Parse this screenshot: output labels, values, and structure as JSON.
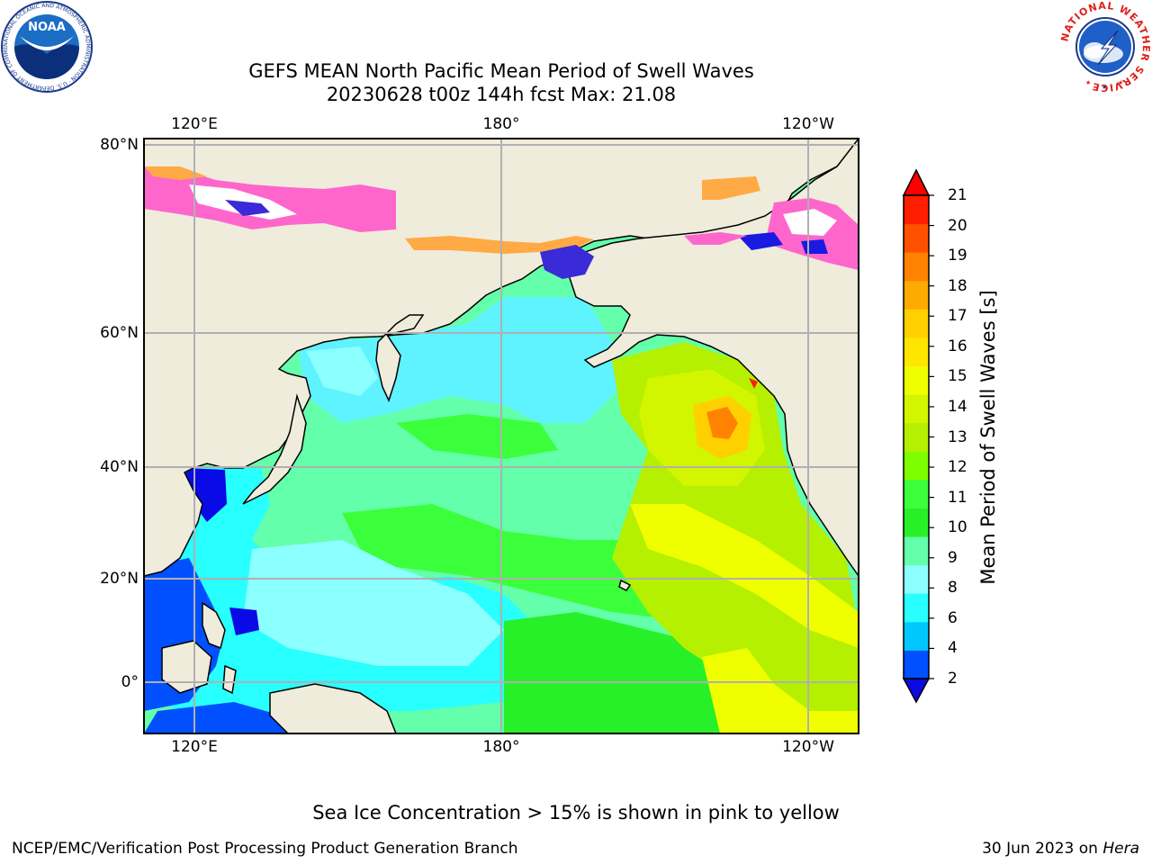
{
  "title_line1": "GEFS MEAN North Pacific Mean Period of Swell Waves",
  "title_line2": "20230628 t00z 144h fcst   Max: 21.08",
  "map": {
    "lon_ticks_top": [
      "120°E",
      "180°",
      "120°W"
    ],
    "lon_ticks_bottom": [
      "120°E",
      "180°",
      "120°W"
    ],
    "lat_ticks": [
      "80°N",
      "60°N",
      "40°N",
      "20°N",
      "0°"
    ],
    "land_color": "#efecdc",
    "grid_color": "#b0b0b0"
  },
  "colorbar": {
    "title": "Mean Period of Swell Waves [s]",
    "levels": [
      2,
      4,
      6,
      8,
      9,
      10,
      11,
      12,
      13,
      14,
      15,
      16,
      17,
      18,
      19,
      20,
      21
    ],
    "labels": [
      "2",
      "4",
      "6",
      "8",
      "9",
      "10",
      "11",
      "12",
      "13",
      "14",
      "15",
      "16",
      "17",
      "18",
      "19",
      "20",
      "21"
    ],
    "colors": [
      "#0050ff",
      "#00c8ff",
      "#28ffff",
      "#8cffff",
      "#64ffaa",
      "#28f028",
      "#3cff3c",
      "#7dff00",
      "#b4f000",
      "#d2f500",
      "#f0ff00",
      "#ffe600",
      "#ffd000",
      "#ffaa00",
      "#ff8200",
      "#ff5000",
      "#ff1e00"
    ],
    "under_color": "#0a0ae6",
    "over_color": "#ff0000"
  },
  "note": "Sea Ice Concentration > 15% is shown in pink to yellow",
  "credit": "NCEP/EMC/Verification Post Processing Product Generation Branch",
  "date": "30 Jun 2023 on",
  "host": "Hera",
  "logos": {
    "noaa": {
      "text": "NOAA",
      "ring": "NATIONAL OCEANIC AND ATMOSPHERIC ADMINISTRATION · U.S. DEPARTMENT OF COMMERCE"
    },
    "nws": {
      "ring": "NATIONAL WEATHER SERVICE"
    }
  }
}
